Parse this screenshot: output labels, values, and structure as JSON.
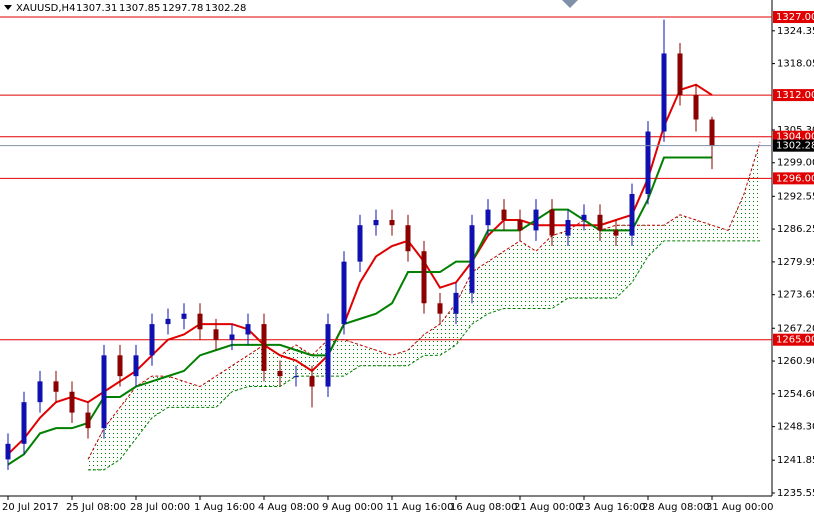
{
  "chart_data": {
    "type": "candlestick",
    "symbol": "XAUUSD,H4",
    "categories": [
      "20 Jul 2017",
      null,
      null,
      null,
      "25 Jul 08:00",
      null,
      null,
      null,
      "28 Jul 00:00",
      null,
      null,
      null,
      "1 Aug 16:00",
      null,
      null,
      null,
      "4 Aug 08:00",
      null,
      null,
      null,
      "9 Aug 00:00",
      null,
      null,
      null,
      "11 Aug 16:00",
      null,
      null,
      null,
      "16 Aug 08:00",
      null,
      null,
      null,
      "21 Aug 00:00",
      null,
      null,
      null,
      "23 Aug 16:00",
      null,
      null,
      null,
      "28 Aug 08:00",
      null,
      null,
      null,
      "31 Aug 00:00",
      null,
      null,
      null
    ],
    "open": [
      1242,
      1245,
      1253,
      1257,
      1255,
      1251,
      1248,
      1262,
      1258,
      1262,
      1268,
      1269,
      1270,
      1267,
      1265,
      1266,
      1268,
      1259,
      1258,
      1258,
      1256,
      1268,
      1280,
      1287,
      1288,
      1287,
      1282,
      1272,
      1270,
      1274,
      1287,
      1290,
      1288,
      1286,
      1290,
      1285,
      1288,
      1289,
      1286,
      1285,
      1293,
      1305,
      1320,
      1312,
      1307.31,
      null,
      null,
      null
    ],
    "high": [
      1247,
      1255,
      1259,
      1259,
      1257,
      1253,
      1264,
      1264,
      1264,
      1270,
      1271,
      1272,
      1272,
      1269,
      1268,
      1270,
      1270,
      1261,
      1260,
      1260,
      1270,
      1282,
      1289,
      1290,
      1290,
      1289,
      1284,
      1274,
      1276,
      1289,
      1292,
      1292,
      1290,
      1292,
      1292,
      1290,
      1291,
      1291,
      1288,
      1295,
      1307,
      1326.5,
      1322,
      1314,
      1307.85,
      null,
      null,
      null
    ],
    "low": [
      1240,
      1243,
      1251,
      1253,
      1249,
      1246,
      1246,
      1256,
      1256,
      1260,
      1266,
      1267,
      1265,
      1263,
      1263,
      1264,
      1257,
      1256,
      1256,
      1252,
      1254,
      1266,
      1278,
      1285,
      1285,
      1280,
      1270,
      1268,
      1268,
      1272,
      1285,
      1286,
      1284,
      1284,
      1283,
      1283,
      1286,
      1284,
      1283,
      1283,
      1291,
      1303,
      1310,
      1305,
      1297.78,
      null,
      null,
      null
    ],
    "close": [
      1245,
      1253,
      1257,
      1255,
      1251,
      1248,
      1262,
      1258,
      1262,
      1268,
      1269,
      1270,
      1267,
      1265,
      1266,
      1268,
      1259,
      1258,
      1258,
      1256,
      1268,
      1280,
      1287,
      1288,
      1287,
      1282,
      1272,
      1270,
      1274,
      1287,
      1290,
      1288,
      1286,
      1290,
      1285,
      1288,
      1289,
      1286,
      1285,
      1293,
      1305,
      1320,
      1312,
      1307.31,
      1302.28,
      null,
      null,
      null
    ],
    "up_color": "#1010b0",
    "down_color": "#8b0000",
    "lines": [
      {
        "color": "#c00000",
        "dash": true,
        "values": [
          null,
          null,
          null,
          null,
          null,
          1242,
          1248,
          1252,
          1256,
          1258,
          1258,
          1257,
          1256,
          1258,
          1260,
          1262,
          1264,
          1262,
          1264,
          1262,
          1265,
          1265,
          1264,
          1263,
          1262,
          1263,
          1266,
          1268,
          1272,
          1278,
          1280,
          1282,
          1284,
          1282,
          1285,
          1286,
          1288,
          1286,
          1287,
          1287,
          1287,
          1287,
          1289,
          1288,
          1287,
          1286,
          1293,
          1303
        ]
      },
      {
        "color": "#008000",
        "dash": true,
        "values": [
          null,
          null,
          null,
          null,
          null,
          1240,
          1240,
          1242,
          1246,
          1250,
          1252,
          1252,
          1252,
          1252,
          1255,
          1256,
          1256,
          1256,
          1258,
          1258,
          1258,
          1258,
          1260,
          1260,
          1260,
          1260,
          1262,
          1262,
          1264,
          1268,
          1270,
          1271,
          1271,
          1271,
          1271,
          1273,
          1273,
          1273,
          1273,
          1276,
          1281,
          1284,
          1284,
          1284,
          1284,
          1284,
          1284,
          1284
        ]
      },
      {
        "color": "#e00000",
        "dash": false,
        "values": [
          1243,
          1246,
          1250,
          1253,
          1254,
          1253,
          1255,
          1257,
          1259,
          1262,
          1265,
          1266,
          1268,
          1268,
          1268,
          1267,
          1264,
          1262,
          1261,
          1259,
          1262,
          1268,
          1276,
          1281,
          1283,
          1284,
          1280,
          1275,
          1276,
          1280,
          1285,
          1288,
          1288,
          1287,
          1287,
          1287,
          1287,
          1287,
          1288,
          1289,
          1296,
          1306,
          1313,
          1314,
          1312,
          null,
          null,
          null
        ]
      },
      {
        "color": "#008000",
        "dash": false,
        "values": [
          1241,
          1243,
          1247,
          1248,
          1248,
          1249,
          1254,
          1254,
          1256,
          1257,
          1258,
          1259,
          1262,
          1263,
          1264,
          1264,
          1264,
          1264,
          1263,
          1262,
          1262,
          1268,
          1269,
          1270,
          1272,
          1278,
          1278,
          1278,
          1280,
          1280,
          1286,
          1286,
          1286,
          1288,
          1290,
          1290,
          1288,
          1286,
          1286,
          1286,
          1292,
          1300,
          1300,
          1300,
          1300,
          null,
          null,
          null
        ]
      }
    ],
    "levels": [
      {
        "value": 1327,
        "label": "1327.00"
      },
      {
        "value": 1312,
        "label": "1312.00"
      },
      {
        "value": 1304,
        "label": "1304.00"
      },
      {
        "value": 1296,
        "label": "1296.00"
      },
      {
        "value": 1265,
        "label": "1265.00"
      }
    ],
    "level_color": "#e00000",
    "ylim": [
      1234.97,
      1330.27
    ],
    "yticks": [
      {
        "value": 1324.35,
        "label": "1324.35"
      },
      {
        "value": 1318.05,
        "label": "1318.05"
      },
      {
        "value": 1305.3,
        "label": "1305.30"
      },
      {
        "value": 1299,
        "label": "1299.00"
      },
      {
        "value": 1292.55,
        "label": "1292.55"
      },
      {
        "value": 1286.25,
        "label": "1286.25"
      },
      {
        "value": 1279.95,
        "label": "1279.95"
      },
      {
        "value": 1273.65,
        "label": "1273.65"
      },
      {
        "value": 1267.2,
        "label": "1267.20"
      },
      {
        "value": 1260.9,
        "label": "1260.90"
      },
      {
        "value": 1254.6,
        "label": "1254.60"
      },
      {
        "value": 1248.3,
        "label": "1248.30"
      },
      {
        "value": 1241.85,
        "label": "1241.85"
      },
      {
        "value": 1235.55,
        "label": "1235.55"
      }
    ]
  }
}
